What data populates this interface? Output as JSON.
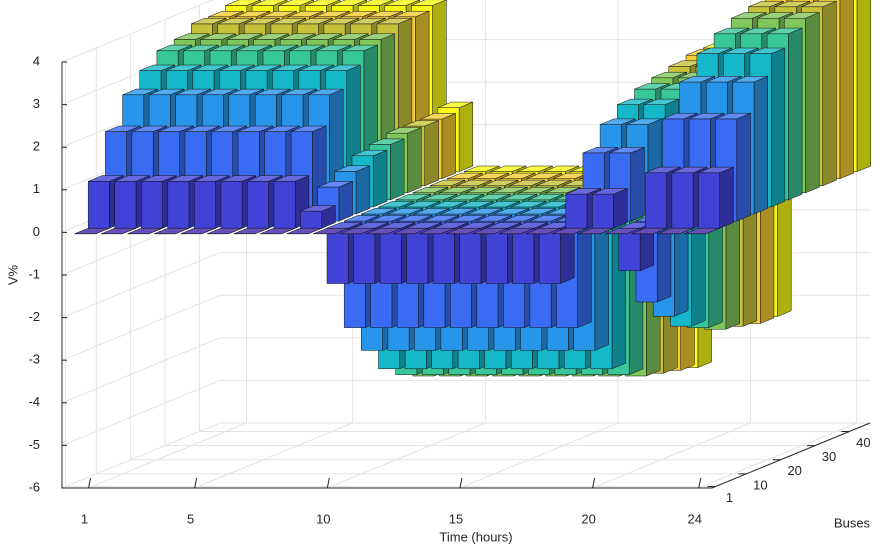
{
  "chart_data": {
    "type": "bar3",
    "xlabel": "Time (hours)",
    "ylabel": "Buses",
    "zlabel": "V%",
    "xlim": [
      0,
      24.5
    ],
    "xticks": [
      1,
      5,
      10,
      15,
      20,
      24
    ],
    "ylim": [
      0,
      46
    ],
    "yticks": [
      1,
      10,
      20,
      30,
      40
    ],
    "zlim": [
      -6,
      4
    ],
    "zticks": [
      -6,
      -5,
      -4,
      -3,
      -2,
      -1,
      0,
      1,
      2,
      3,
      4
    ],
    "grid": true,
    "colormap": [
      "#3e26a8",
      "#4254f0",
      "#2d8cf4",
      "#14b8c9",
      "#3fca8d",
      "#aac43a",
      "#f3bf3a",
      "#f9fb15"
    ],
    "x": [
      1,
      2,
      3,
      4,
      5,
      6,
      7,
      8,
      9,
      10,
      11,
      12,
      13,
      14,
      15,
      16,
      17,
      18,
      19,
      20,
      21,
      22,
      23,
      24
    ],
    "buses": [
      1,
      5,
      10,
      15,
      20,
      25,
      30,
      35,
      40,
      45
    ],
    "series": [
      {
        "values": [
          0,
          0,
          0,
          0,
          0,
          0,
          0,
          0,
          0,
          0,
          0,
          0,
          0,
          0,
          0,
          0,
          0,
          0,
          0,
          0,
          0,
          0,
          0,
          0
        ]
      },
      {
        "values": [
          1.1,
          1.1,
          1.1,
          1.1,
          1.1,
          1.1,
          1.1,
          1.1,
          0.4,
          -1.3,
          -1.3,
          -1.3,
          -1.3,
          -1.3,
          -1.3,
          -1.3,
          -1.3,
          -1.3,
          0.8,
          0.8,
          -1.0,
          1.3,
          1.3,
          1.3
        ]
      },
      {
        "values": [
          2.1,
          2.1,
          2.1,
          2.1,
          2.1,
          2.1,
          2.1,
          2.1,
          0.8,
          -2.5,
          -2.5,
          -2.5,
          -2.5,
          -2.5,
          -2.5,
          -2.5,
          -2.5,
          -2.5,
          1.6,
          1.6,
          -1.9,
          2.4,
          2.4,
          2.4
        ]
      },
      {
        "values": [
          2.8,
          2.8,
          2.8,
          2.8,
          2.8,
          2.8,
          2.8,
          2.8,
          1.0,
          -3.2,
          -3.2,
          -3.2,
          -3.2,
          -3.2,
          -3.2,
          -3.2,
          -3.2,
          -3.2,
          2.1,
          2.1,
          -2.4,
          3.1,
          3.1,
          3.1
        ]
      },
      {
        "values": [
          3.2,
          3.2,
          3.2,
          3.2,
          3.2,
          3.2,
          3.2,
          3.2,
          1.2,
          -3.8,
          -3.8,
          -3.8,
          -3.8,
          -3.8,
          -3.8,
          -3.8,
          -3.8,
          -3.8,
          2.4,
          2.4,
          -2.8,
          3.6,
          3.6,
          3.6
        ]
      },
      {
        "values": [
          3.5,
          3.5,
          3.5,
          3.5,
          3.5,
          3.5,
          3.5,
          3.5,
          1.3,
          -4.1,
          -4.1,
          -4.1,
          -4.1,
          -4.1,
          -4.1,
          -4.1,
          -4.1,
          -4.1,
          2.6,
          2.6,
          -3.0,
          3.9,
          3.9,
          3.9
        ]
      },
      {
        "values": [
          3.6,
          3.6,
          3.6,
          3.6,
          3.6,
          3.6,
          3.6,
          3.6,
          1.4,
          -4.3,
          -4.3,
          -4.3,
          -4.3,
          -4.3,
          -4.3,
          -4.3,
          -4.3,
          -4.3,
          2.7,
          2.7,
          -3.2,
          4.1,
          4.1,
          4.1
        ]
      },
      {
        "values": [
          3.8,
          3.8,
          3.8,
          3.8,
          3.8,
          3.8,
          3.8,
          3.8,
          1.4,
          -4.4,
          -4.4,
          -4.4,
          -4.4,
          -4.4,
          -4.4,
          -4.4,
          -4.4,
          -4.4,
          2.8,
          2.8,
          -3.3,
          4.2,
          4.2,
          4.2
        ]
      },
      {
        "values": [
          3.8,
          3.8,
          3.8,
          3.8,
          3.8,
          3.8,
          3.8,
          3.8,
          1.4,
          -4.5,
          -4.5,
          -4.5,
          -4.5,
          -4.5,
          -4.5,
          -4.5,
          -4.5,
          -4.5,
          2.9,
          2.9,
          -3.4,
          4.3,
          4.3,
          4.3
        ]
      },
      {
        "values": [
          3.9,
          3.9,
          3.9,
          3.9,
          3.9,
          3.9,
          3.9,
          3.9,
          1.5,
          -4.6,
          -4.6,
          -4.6,
          -4.6,
          -4.6,
          -4.6,
          -4.6,
          -4.6,
          -4.6,
          2.9,
          2.9,
          -3.4,
          4.4,
          4.4,
          4.4
        ]
      }
    ]
  }
}
